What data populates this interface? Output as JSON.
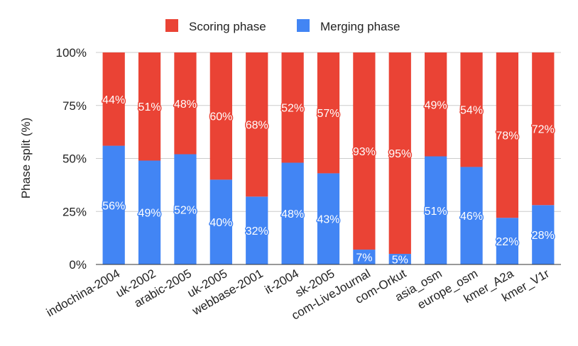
{
  "chart_data": {
    "type": "bar",
    "stacked": true,
    "title": "",
    "xlabel": "",
    "ylabel": "Phase split (%)",
    "ylim": [
      0,
      100
    ],
    "yticks": [
      "0%",
      "25%",
      "50%",
      "75%",
      "100%"
    ],
    "grid": true,
    "legend_position": "top-center",
    "categories": [
      "indochina-2004",
      "uk-2002",
      "arabic-2005",
      "uk-2005",
      "webbase-2001",
      "it-2004",
      "sk-2005",
      "com-LiveJournal",
      "com-Orkut",
      "asia_osm",
      "europe_osm",
      "kmer_A2a",
      "kmer_V1r"
    ],
    "series": [
      {
        "name": "Merging phase",
        "color": "#4285f4",
        "values": [
          56,
          49,
          52,
          40,
          32,
          48,
          43,
          7,
          5,
          51,
          46,
          22,
          28
        ],
        "labels": [
          "56%",
          "49%",
          "52%",
          "40%",
          "32%",
          "48%",
          "43%",
          "7%",
          "5%",
          "51%",
          "46%",
          "22%",
          "28%"
        ]
      },
      {
        "name": "Scoring phase",
        "color": "#ea4335",
        "values": [
          44,
          51,
          48,
          60,
          68,
          52,
          57,
          93,
          95,
          49,
          54,
          78,
          72
        ],
        "labels": [
          "44%",
          "51%",
          "48%",
          "60%",
          "68%",
          "52%",
          "57%",
          "93%",
          "95%",
          "49%",
          "54%",
          "78%",
          "72%"
        ]
      }
    ],
    "legend": [
      {
        "name": "Scoring phase",
        "color": "#ea4335"
      },
      {
        "name": "Merging phase",
        "color": "#4285f4"
      }
    ]
  }
}
